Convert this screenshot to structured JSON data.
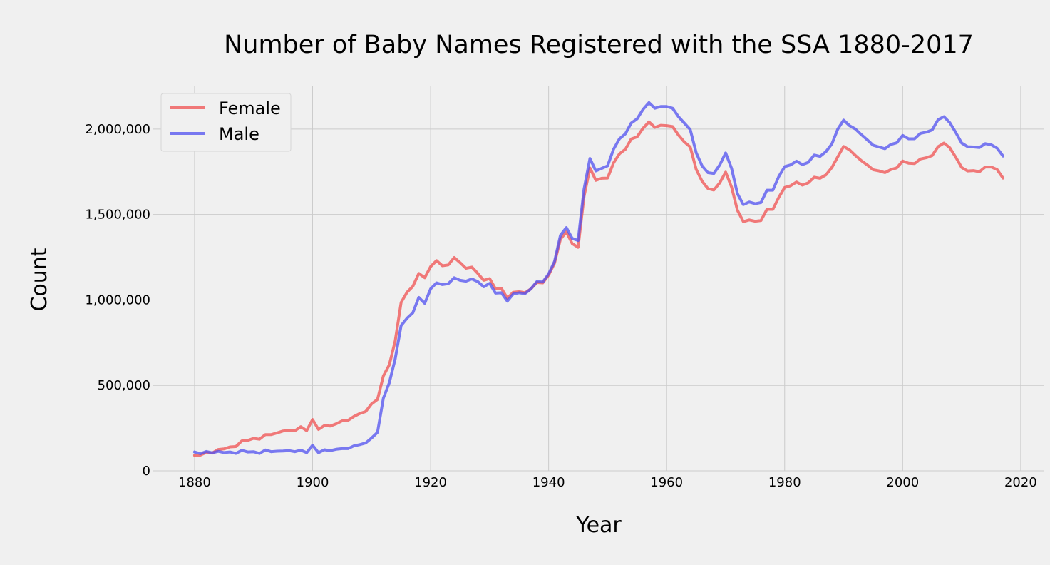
{
  "chart_data": {
    "type": "line",
    "title": "Number of Baby Names Registered with the SSA 1880-2017",
    "xlabel": "Year",
    "ylabel": "Count",
    "xlim": [
      1873,
      2024
    ],
    "ylim": [
      0,
      2250000
    ],
    "x_ticks": [
      {
        "value": 1880,
        "label": "1880"
      },
      {
        "value": 1900,
        "label": "1900"
      },
      {
        "value": 1920,
        "label": "1920"
      },
      {
        "value": 1940,
        "label": "1940"
      },
      {
        "value": 1960,
        "label": "1960"
      },
      {
        "value": 1980,
        "label": "1980"
      },
      {
        "value": 2000,
        "label": "2000"
      },
      {
        "value": 2020,
        "label": "2020"
      }
    ],
    "y_ticks": [
      {
        "value": 0,
        "label": "0"
      },
      {
        "value": 500000,
        "label": "500,000"
      },
      {
        "value": 1000000,
        "label": "1,000,000"
      },
      {
        "value": 1500000,
        "label": "1,500,000"
      },
      {
        "value": 2000000,
        "label": "2,000,000"
      }
    ],
    "grid": true,
    "legend_position": "top-left",
    "x": [
      1880,
      1881,
      1882,
      1883,
      1884,
      1885,
      1886,
      1887,
      1888,
      1889,
      1890,
      1891,
      1892,
      1893,
      1894,
      1895,
      1896,
      1897,
      1898,
      1899,
      1900,
      1901,
      1902,
      1903,
      1904,
      1905,
      1906,
      1907,
      1908,
      1909,
      1910,
      1911,
      1912,
      1913,
      1914,
      1915,
      1916,
      1917,
      1918,
      1919,
      1920,
      1921,
      1922,
      1923,
      1924,
      1925,
      1926,
      1927,
      1928,
      1929,
      1930,
      1931,
      1932,
      1933,
      1934,
      1935,
      1936,
      1937,
      1938,
      1939,
      1940,
      1941,
      1942,
      1943,
      1944,
      1945,
      1946,
      1947,
      1948,
      1949,
      1950,
      1951,
      1952,
      1953,
      1954,
      1955,
      1956,
      1957,
      1958,
      1959,
      1960,
      1961,
      1962,
      1963,
      1964,
      1965,
      1966,
      1967,
      1968,
      1969,
      1970,
      1971,
      1972,
      1973,
      1974,
      1975,
      1976,
      1977,
      1978,
      1979,
      1980,
      1981,
      1982,
      1983,
      1984,
      1985,
      1986,
      1987,
      1988,
      1989,
      1990,
      1991,
      1992,
      1993,
      1994,
      1995,
      1996,
      1997,
      1998,
      1999,
      2000,
      2001,
      2002,
      2003,
      2004,
      2005,
      2006,
      2007,
      2008,
      2009,
      2010,
      2011,
      2012,
      2013,
      2014,
      2015,
      2016,
      2017
    ],
    "series": [
      {
        "name": "Female",
        "color": "#f05050",
        "values": [
          90000,
          92000,
          108000,
          104000,
          125000,
          128000,
          140000,
          142000,
          175000,
          178000,
          190000,
          185000,
          212000,
          212000,
          222000,
          233000,
          237000,
          234000,
          258000,
          235000,
          300000,
          242000,
          265000,
          262000,
          275000,
          292000,
          295000,
          318000,
          335000,
          347000,
          392000,
          418000,
          555000,
          620000,
          760000,
          985000,
          1045000,
          1080000,
          1155000,
          1130000,
          1195000,
          1230000,
          1200000,
          1205000,
          1248000,
          1218000,
          1185000,
          1192000,
          1155000,
          1115000,
          1125000,
          1065000,
          1068000,
          1010000,
          1045000,
          1048000,
          1042000,
          1065000,
          1102000,
          1100000,
          1145000,
          1215000,
          1355000,
          1398000,
          1330000,
          1308000,
          1605000,
          1772000,
          1700000,
          1712000,
          1713000,
          1802000,
          1855000,
          1882000,
          1942000,
          1955000,
          2005000,
          2042000,
          2010000,
          2022000,
          2020000,
          2015000,
          1965000,
          1925000,
          1895000,
          1765000,
          1695000,
          1652000,
          1643000,
          1685000,
          1748000,
          1660000,
          1525000,
          1458000,
          1468000,
          1460000,
          1465000,
          1530000,
          1530000,
          1600000,
          1658000,
          1668000,
          1690000,
          1672000,
          1685000,
          1718000,
          1712000,
          1732000,
          1775000,
          1838000,
          1898000,
          1878000,
          1845000,
          1815000,
          1790000,
          1762000,
          1755000,
          1745000,
          1763000,
          1773000,
          1813000,
          1800000,
          1798000,
          1825000,
          1832000,
          1845000,
          1897000,
          1918000,
          1890000,
          1835000,
          1775000,
          1755000,
          1757000,
          1750000,
          1778000,
          1778000,
          1763000,
          1713000
        ]
      },
      {
        "name": "Male",
        "color": "#5050f0",
        "values": [
          110000,
          100000,
          113000,
          105000,
          114000,
          107000,
          110000,
          102000,
          120000,
          110000,
          112000,
          102000,
          122000,
          112000,
          115000,
          116000,
          118000,
          112000,
          121000,
          106000,
          150000,
          106000,
          123000,
          118000,
          126000,
          130000,
          130000,
          146000,
          153000,
          163000,
          192000,
          225000,
          425000,
          515000,
          655000,
          850000,
          893000,
          925000,
          1015000,
          980000,
          1065000,
          1100000,
          1090000,
          1095000,
          1130000,
          1115000,
          1110000,
          1123000,
          1107000,
          1077000,
          1097000,
          1040000,
          1042000,
          993000,
          1035000,
          1042000,
          1037000,
          1065000,
          1107000,
          1105000,
          1152000,
          1225000,
          1378000,
          1423000,
          1360000,
          1348000,
          1648000,
          1828000,
          1755000,
          1770000,
          1785000,
          1882000,
          1943000,
          1972000,
          2035000,
          2060000,
          2115000,
          2155000,
          2122000,
          2132000,
          2132000,
          2122000,
          2072000,
          2035000,
          1997000,
          1862000,
          1785000,
          1745000,
          1740000,
          1790000,
          1860000,
          1770000,
          1622000,
          1558000,
          1573000,
          1563000,
          1570000,
          1642000,
          1642000,
          1722000,
          1780000,
          1790000,
          1812000,
          1792000,
          1805000,
          1848000,
          1840000,
          1868000,
          1913000,
          2000000,
          2052000,
          2020000,
          2000000,
          1967000,
          1937000,
          1905000,
          1895000,
          1885000,
          1910000,
          1920000,
          1963000,
          1943000,
          1943000,
          1975000,
          1982000,
          1995000,
          2055000,
          2072000,
          2037000,
          1980000,
          1918000,
          1897000,
          1895000,
          1892000,
          1915000,
          1908000,
          1888000,
          1842000
        ]
      }
    ]
  }
}
